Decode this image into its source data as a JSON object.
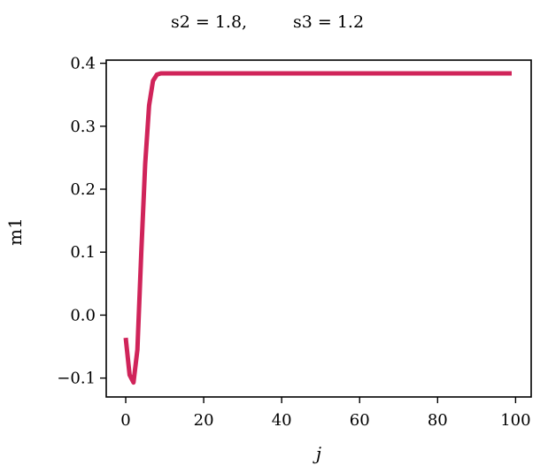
{
  "chart_data": {
    "type": "line",
    "title": "",
    "title_parts": [
      "s2 = 1.8,",
      "s3 = 1.2"
    ],
    "xlabel": "j",
    "ylabel": "m1",
    "xlim": [
      -5,
      104
    ],
    "ylim": [
      -0.13,
      0.405
    ],
    "xticks": [
      0,
      20,
      40,
      60,
      80,
      100
    ],
    "xtick_labels": [
      "0",
      "20",
      "40",
      "60",
      "80",
      "100"
    ],
    "yticks": [
      -0.1,
      0.0,
      0.1,
      0.2,
      0.3,
      0.4
    ],
    "ytick_labels": [
      "−0.1",
      "0.0",
      "0.1",
      "0.2",
      "0.3",
      "0.4"
    ],
    "grid": false,
    "series": [
      {
        "color": "#d0245a",
        "x": [
          0,
          1,
          2,
          3,
          4,
          5,
          6,
          7,
          8,
          9,
          10,
          20,
          40,
          60,
          80,
          99
        ],
        "y": [
          -0.036,
          -0.095,
          -0.107,
          -0.055,
          0.1,
          0.24,
          0.333,
          0.372,
          0.382,
          0.384,
          0.384,
          0.384,
          0.384,
          0.384,
          0.384,
          0.384
        ]
      }
    ]
  }
}
